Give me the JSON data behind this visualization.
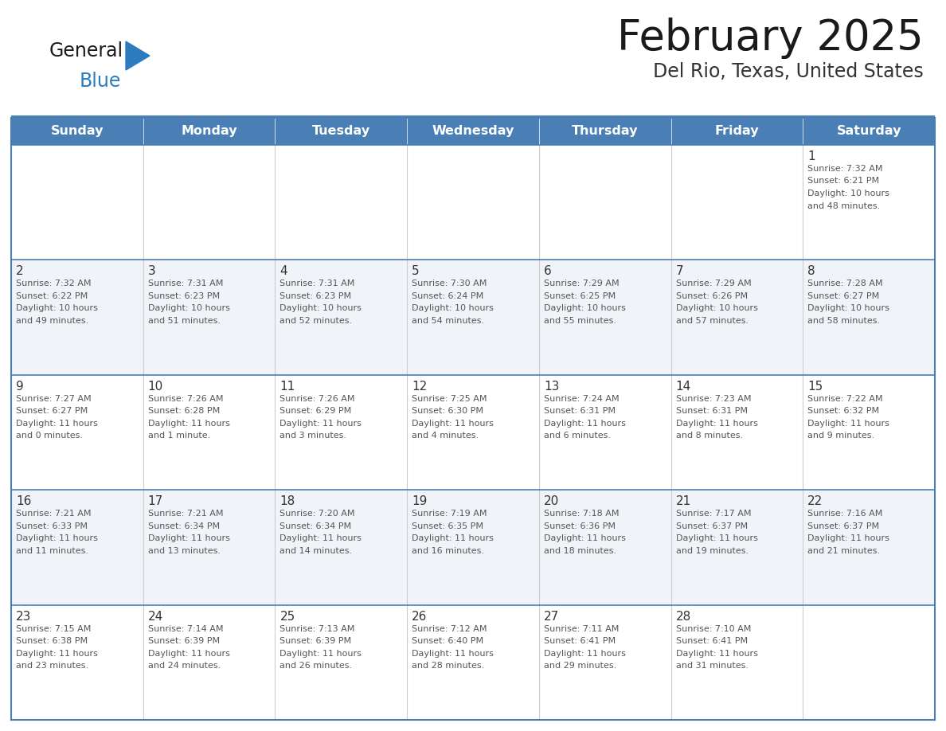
{
  "title": "February 2025",
  "subtitle": "Del Rio, Texas, United States",
  "header_bg": "#4a7fb5",
  "header_text_color": "#ffffff",
  "day_names": [
    "Sunday",
    "Monday",
    "Tuesday",
    "Wednesday",
    "Thursday",
    "Friday",
    "Saturday"
  ],
  "row_bg_light": "#f0f4f8",
  "row_bg_white": "#ffffff",
  "cell_text_color": "#555555",
  "day_num_color": "#333333",
  "border_color": "#4a7fb5",
  "line_color": "#4a7fb5",
  "logo_general_color": "#1a1a1a",
  "logo_blue_color": "#2b7bbf",
  "calendar": [
    [
      {
        "day": "",
        "lines": []
      },
      {
        "day": "",
        "lines": []
      },
      {
        "day": "",
        "lines": []
      },
      {
        "day": "",
        "lines": []
      },
      {
        "day": "",
        "lines": []
      },
      {
        "day": "",
        "lines": []
      },
      {
        "day": "1",
        "lines": [
          "Sunrise: 7:32 AM",
          "Sunset: 6:21 PM",
          "Daylight: 10 hours",
          "and 48 minutes."
        ]
      }
    ],
    [
      {
        "day": "2",
        "lines": [
          "Sunrise: 7:32 AM",
          "Sunset: 6:22 PM",
          "Daylight: 10 hours",
          "and 49 minutes."
        ]
      },
      {
        "day": "3",
        "lines": [
          "Sunrise: 7:31 AM",
          "Sunset: 6:23 PM",
          "Daylight: 10 hours",
          "and 51 minutes."
        ]
      },
      {
        "day": "4",
        "lines": [
          "Sunrise: 7:31 AM",
          "Sunset: 6:23 PM",
          "Daylight: 10 hours",
          "and 52 minutes."
        ]
      },
      {
        "day": "5",
        "lines": [
          "Sunrise: 7:30 AM",
          "Sunset: 6:24 PM",
          "Daylight: 10 hours",
          "and 54 minutes."
        ]
      },
      {
        "day": "6",
        "lines": [
          "Sunrise: 7:29 AM",
          "Sunset: 6:25 PM",
          "Daylight: 10 hours",
          "and 55 minutes."
        ]
      },
      {
        "day": "7",
        "lines": [
          "Sunrise: 7:29 AM",
          "Sunset: 6:26 PM",
          "Daylight: 10 hours",
          "and 57 minutes."
        ]
      },
      {
        "day": "8",
        "lines": [
          "Sunrise: 7:28 AM",
          "Sunset: 6:27 PM",
          "Daylight: 10 hours",
          "and 58 minutes."
        ]
      }
    ],
    [
      {
        "day": "9",
        "lines": [
          "Sunrise: 7:27 AM",
          "Sunset: 6:27 PM",
          "Daylight: 11 hours",
          "and 0 minutes."
        ]
      },
      {
        "day": "10",
        "lines": [
          "Sunrise: 7:26 AM",
          "Sunset: 6:28 PM",
          "Daylight: 11 hours",
          "and 1 minute."
        ]
      },
      {
        "day": "11",
        "lines": [
          "Sunrise: 7:26 AM",
          "Sunset: 6:29 PM",
          "Daylight: 11 hours",
          "and 3 minutes."
        ]
      },
      {
        "day": "12",
        "lines": [
          "Sunrise: 7:25 AM",
          "Sunset: 6:30 PM",
          "Daylight: 11 hours",
          "and 4 minutes."
        ]
      },
      {
        "day": "13",
        "lines": [
          "Sunrise: 7:24 AM",
          "Sunset: 6:31 PM",
          "Daylight: 11 hours",
          "and 6 minutes."
        ]
      },
      {
        "day": "14",
        "lines": [
          "Sunrise: 7:23 AM",
          "Sunset: 6:31 PM",
          "Daylight: 11 hours",
          "and 8 minutes."
        ]
      },
      {
        "day": "15",
        "lines": [
          "Sunrise: 7:22 AM",
          "Sunset: 6:32 PM",
          "Daylight: 11 hours",
          "and 9 minutes."
        ]
      }
    ],
    [
      {
        "day": "16",
        "lines": [
          "Sunrise: 7:21 AM",
          "Sunset: 6:33 PM",
          "Daylight: 11 hours",
          "and 11 minutes."
        ]
      },
      {
        "day": "17",
        "lines": [
          "Sunrise: 7:21 AM",
          "Sunset: 6:34 PM",
          "Daylight: 11 hours",
          "and 13 minutes."
        ]
      },
      {
        "day": "18",
        "lines": [
          "Sunrise: 7:20 AM",
          "Sunset: 6:34 PM",
          "Daylight: 11 hours",
          "and 14 minutes."
        ]
      },
      {
        "day": "19",
        "lines": [
          "Sunrise: 7:19 AM",
          "Sunset: 6:35 PM",
          "Daylight: 11 hours",
          "and 16 minutes."
        ]
      },
      {
        "day": "20",
        "lines": [
          "Sunrise: 7:18 AM",
          "Sunset: 6:36 PM",
          "Daylight: 11 hours",
          "and 18 minutes."
        ]
      },
      {
        "day": "21",
        "lines": [
          "Sunrise: 7:17 AM",
          "Sunset: 6:37 PM",
          "Daylight: 11 hours",
          "and 19 minutes."
        ]
      },
      {
        "day": "22",
        "lines": [
          "Sunrise: 7:16 AM",
          "Sunset: 6:37 PM",
          "Daylight: 11 hours",
          "and 21 minutes."
        ]
      }
    ],
    [
      {
        "day": "23",
        "lines": [
          "Sunrise: 7:15 AM",
          "Sunset: 6:38 PM",
          "Daylight: 11 hours",
          "and 23 minutes."
        ]
      },
      {
        "day": "24",
        "lines": [
          "Sunrise: 7:14 AM",
          "Sunset: 6:39 PM",
          "Daylight: 11 hours",
          "and 24 minutes."
        ]
      },
      {
        "day": "25",
        "lines": [
          "Sunrise: 7:13 AM",
          "Sunset: 6:39 PM",
          "Daylight: 11 hours",
          "and 26 minutes."
        ]
      },
      {
        "day": "26",
        "lines": [
          "Sunrise: 7:12 AM",
          "Sunset: 6:40 PM",
          "Daylight: 11 hours",
          "and 28 minutes."
        ]
      },
      {
        "day": "27",
        "lines": [
          "Sunrise: 7:11 AM",
          "Sunset: 6:41 PM",
          "Daylight: 11 hours",
          "and 29 minutes."
        ]
      },
      {
        "day": "28",
        "lines": [
          "Sunrise: 7:10 AM",
          "Sunset: 6:41 PM",
          "Daylight: 11 hours",
          "and 31 minutes."
        ]
      },
      {
        "day": "",
        "lines": []
      }
    ]
  ],
  "fig_width": 11.88,
  "fig_height": 9.18,
  "dpi": 100
}
